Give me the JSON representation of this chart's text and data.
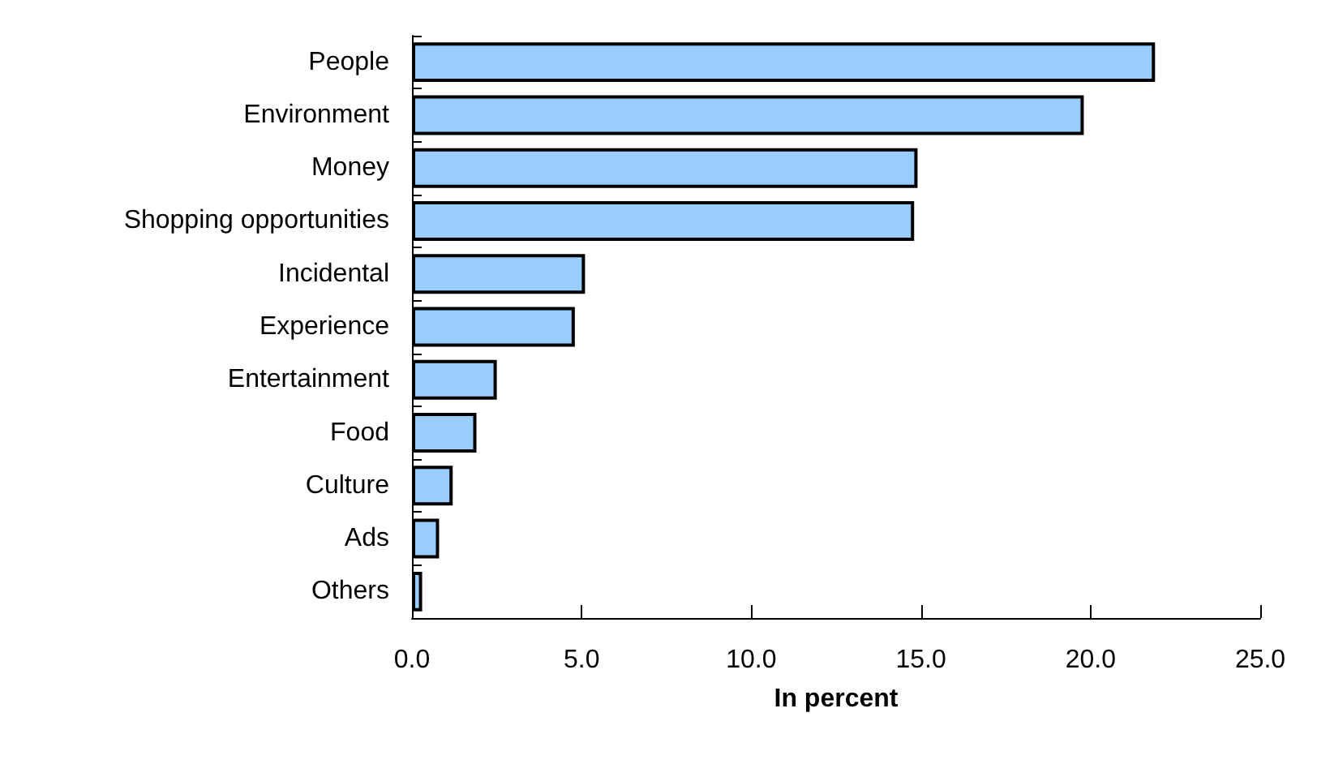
{
  "chart_data": {
    "type": "bar",
    "orientation": "horizontal",
    "xlabel": "In percent",
    "categories": [
      "People",
      "Environment",
      "Money",
      "Shopping opportunities",
      "Incidental",
      "Experience",
      "Entertainment",
      "Food",
      "Culture",
      "Ads",
      "Others"
    ],
    "values": [
      21.9,
      19.8,
      14.9,
      14.8,
      5.1,
      4.8,
      2.5,
      1.9,
      1.2,
      0.8,
      0.3
    ],
    "color": "#99ccff",
    "xlim": [
      0,
      25
    ],
    "xticks": [
      {
        "value": 0,
        "label": "0.0"
      },
      {
        "value": 5,
        "label": "5.0"
      },
      {
        "value": 10,
        "label": "10.0"
      },
      {
        "value": 15,
        "label": "15.0"
      },
      {
        "value": 20,
        "label": "20.0"
      },
      {
        "value": 25,
        "label": "25.0"
      }
    ],
    "grid": false
  }
}
